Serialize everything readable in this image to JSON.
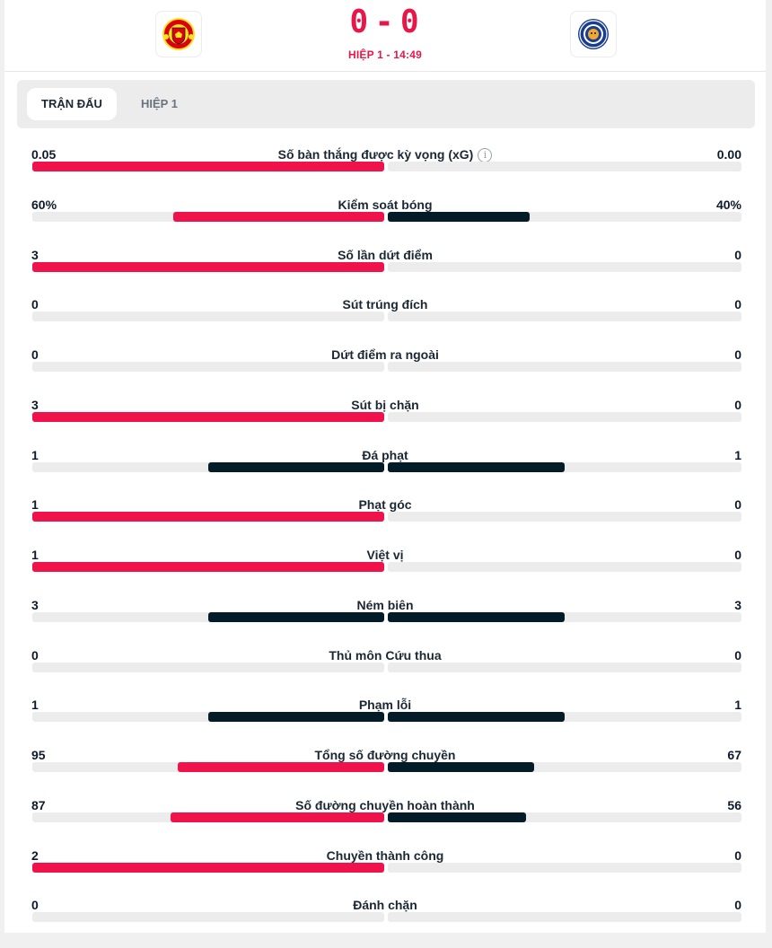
{
  "header": {
    "home_team": {
      "name": "Manchester United",
      "logo_icon": "man-utd-crest-icon"
    },
    "away_team": {
      "name": "Leicester City",
      "logo_icon": "leicester-crest-icon"
    },
    "score_home": "0",
    "score_separator": "-",
    "score_away": "0",
    "status": "HIỆP 1 - 14:49"
  },
  "tabs": [
    {
      "label": "TRẬN ĐẤU",
      "active": true
    },
    {
      "label": "HIỆP 1",
      "active": false
    }
  ],
  "colors": {
    "home_bar": "#f0124b",
    "leader_equal_bar": "#041c28",
    "away_bar": "#041c28",
    "track": "#ececec",
    "score": "#e8174a"
  },
  "stats": [
    {
      "label": "Số bàn thắng được kỳ vọng (xG)",
      "home": "0.05",
      "away": "0.00",
      "home_num": 0.05,
      "away_num": 0.0,
      "info": true
    },
    {
      "label": "Kiểm soát bóng",
      "home": "60%",
      "away": "40%",
      "home_num": 60,
      "away_num": 40
    },
    {
      "label": "Số lần dứt điểm",
      "home": "3",
      "away": "0",
      "home_num": 3,
      "away_num": 0
    },
    {
      "label": "Sút trúng đích",
      "home": "0",
      "away": "0",
      "home_num": 0,
      "away_num": 0
    },
    {
      "label": "Dứt điểm ra ngoài",
      "home": "0",
      "away": "0",
      "home_num": 0,
      "away_num": 0
    },
    {
      "label": "Sút bị chặn",
      "home": "3",
      "away": "0",
      "home_num": 3,
      "away_num": 0
    },
    {
      "label": "Đá phạt",
      "home": "1",
      "away": "1",
      "home_num": 1,
      "away_num": 1
    },
    {
      "label": "Phạt góc",
      "home": "1",
      "away": "0",
      "home_num": 1,
      "away_num": 0
    },
    {
      "label": "Việt vị",
      "home": "1",
      "away": "0",
      "home_num": 1,
      "away_num": 0
    },
    {
      "label": "Ném biên",
      "home": "3",
      "away": "3",
      "home_num": 3,
      "away_num": 3
    },
    {
      "label": "Thủ môn Cứu thua",
      "home": "0",
      "away": "0",
      "home_num": 0,
      "away_num": 0
    },
    {
      "label": "Phạm lỗi",
      "home": "1",
      "away": "1",
      "home_num": 1,
      "away_num": 1
    },
    {
      "label": "Tổng số đường chuyền",
      "home": "95",
      "away": "67",
      "home_num": 95,
      "away_num": 67
    },
    {
      "label": "Số đường chuyền hoàn thành",
      "home": "87",
      "away": "56",
      "home_num": 87,
      "away_num": 56
    },
    {
      "label": "Chuyền thành công",
      "home": "2",
      "away": "0",
      "home_num": 2,
      "away_num": 0
    },
    {
      "label": "Đánh chặn",
      "home": "0",
      "away": "0",
      "home_num": 0,
      "away_num": 0
    }
  ]
}
